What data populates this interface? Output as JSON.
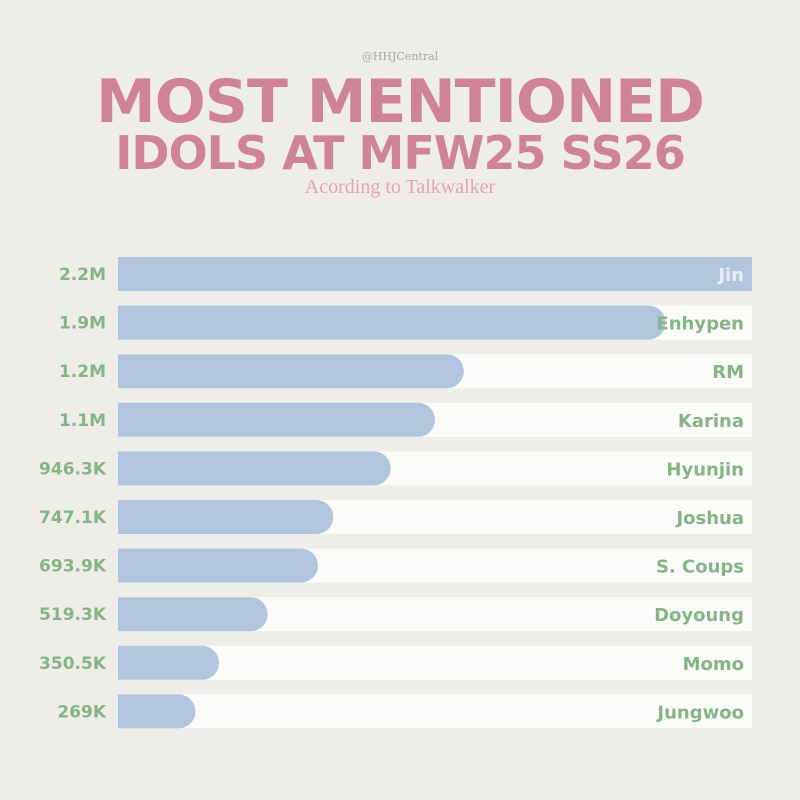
{
  "header": {
    "handle": "@HHJCentral",
    "title_line1": "MOST MENTIONED",
    "title_line2": "IDOLS AT MFW25 SS26",
    "subtitle": "Acording to Talkwalker"
  },
  "colors": {
    "bar": "#b1c5de",
    "track": "#fbfbfa",
    "label": "#86b585",
    "title": "#cf8399",
    "subtitle": "#e6a3b4"
  },
  "chart_data": {
    "type": "bar",
    "orientation": "horizontal",
    "title": "MOST MENTIONED IDOLS AT MFW25 SS26",
    "subtitle": "Acording to Talkwalker",
    "categories": [
      "Jin",
      "Enhypen",
      "RM",
      "Karina",
      "Hyunjin",
      "Joshua",
      "S. Coups",
      "Doyoung",
      "Momo",
      "Jungwoo"
    ],
    "values": [
      2200000,
      1900000,
      1200000,
      1100000,
      946300,
      747100,
      693900,
      519300,
      350500,
      269000
    ],
    "value_labels": [
      "2.2M",
      "1.9M",
      "1.2M",
      "1.1M",
      "946.3K",
      "747.1K",
      "693.9K",
      "519.3K",
      "350.5K",
      "269K"
    ],
    "xlabel": "",
    "ylabel": "",
    "grid": false,
    "legend": "none"
  }
}
